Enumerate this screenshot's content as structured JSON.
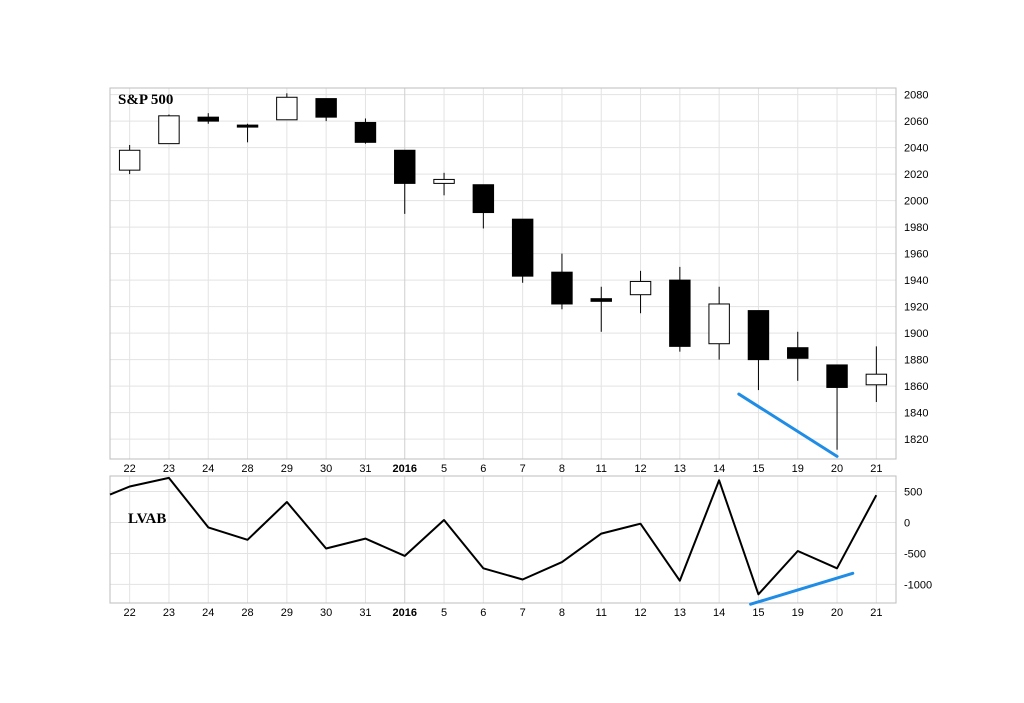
{
  "chart_data": [
    {
      "type": "candlestick",
      "title": "S&P 500",
      "ylim": [
        1805,
        2085
      ],
      "yticks": [
        1820,
        1840,
        1860,
        1880,
        1900,
        1920,
        1940,
        1960,
        1980,
        2000,
        2020,
        2040,
        2060,
        2080
      ],
      "categories": [
        "22",
        "23",
        "24",
        "28",
        "29",
        "30",
        "31",
        "2016",
        "5",
        "6",
        "7",
        "8",
        "11",
        "12",
        "13",
        "14",
        "15",
        "19",
        "20",
        "21"
      ],
      "bold_categories": [
        "2016"
      ],
      "candles": [
        {
          "open": 2023,
          "high": 2042,
          "low": 2020,
          "close": 2038
        },
        {
          "open": 2043,
          "high": 2065,
          "low": 2043,
          "close": 2064
        },
        {
          "open": 2063,
          "high": 2066,
          "low": 2058,
          "close": 2060
        },
        {
          "open": 2057,
          "high": 2058,
          "low": 2044,
          "close": 2056
        },
        {
          "open": 2061,
          "high": 2081,
          "low": 2061,
          "close": 2078
        },
        {
          "open": 2077,
          "high": 2077,
          "low": 2060,
          "close": 2063
        },
        {
          "open": 2059,
          "high": 2062,
          "low": 2043,
          "close": 2044
        },
        {
          "open": 2038,
          "high": 2038,
          "low": 1990,
          "close": 2013
        },
        {
          "open": 2013,
          "high": 2021,
          "low": 2004,
          "close": 2016
        },
        {
          "open": 2012,
          "high": 2012,
          "low": 1979,
          "close": 1991
        },
        {
          "open": 1986,
          "high": 1986,
          "low": 1938,
          "close": 1943
        },
        {
          "open": 1946,
          "high": 1960,
          "low": 1918,
          "close": 1922
        },
        {
          "open": 1926,
          "high": 1935,
          "low": 1901,
          "close": 1924
        },
        {
          "open": 1929,
          "high": 1947,
          "low": 1915,
          "close": 1939
        },
        {
          "open": 1940,
          "high": 1950,
          "low": 1886,
          "close": 1890
        },
        {
          "open": 1892,
          "high": 1935,
          "low": 1880,
          "close": 1922
        },
        {
          "open": 1917,
          "high": 1917,
          "low": 1857,
          "close": 1880
        },
        {
          "open": 1889,
          "high": 1901,
          "low": 1864,
          "close": 1881
        },
        {
          "open": 1876,
          "high": 1876,
          "low": 1812,
          "close": 1859
        },
        {
          "open": 1861,
          "high": 1890,
          "low": 1848,
          "close": 1869
        }
      ],
      "colors": {
        "up": "#ffffff",
        "down": "#000000",
        "trendline": "#1f8ce6"
      },
      "trendline": {
        "from_index": 15.5,
        "to_index": 18,
        "from_value": 1854,
        "to_value": 1807
      }
    },
    {
      "type": "line",
      "title": "LVAB",
      "ylim": [
        -1300,
        750
      ],
      "yticks": [
        500,
        0,
        -500,
        -1000
      ],
      "categories": [
        "22",
        "23",
        "24",
        "28",
        "29",
        "30",
        "31",
        "2016",
        "5",
        "6",
        "7",
        "8",
        "11",
        "12",
        "13",
        "14",
        "15",
        "19",
        "20",
        "21"
      ],
      "bold_categories": [
        "2016"
      ],
      "lead_in_value": 450,
      "values": [
        580,
        720,
        -80,
        -280,
        330,
        -420,
        -260,
        -540,
        40,
        -740,
        -920,
        -640,
        -180,
        -20,
        -940,
        680,
        -1160,
        -460,
        -740,
        440
      ],
      "colors": {
        "line": "#000000",
        "trendline": "#1f8ce6"
      },
      "trendline": {
        "from_index": 15.8,
        "to_index": 18.4,
        "from_value": -1320,
        "to_value": -820
      }
    }
  ]
}
